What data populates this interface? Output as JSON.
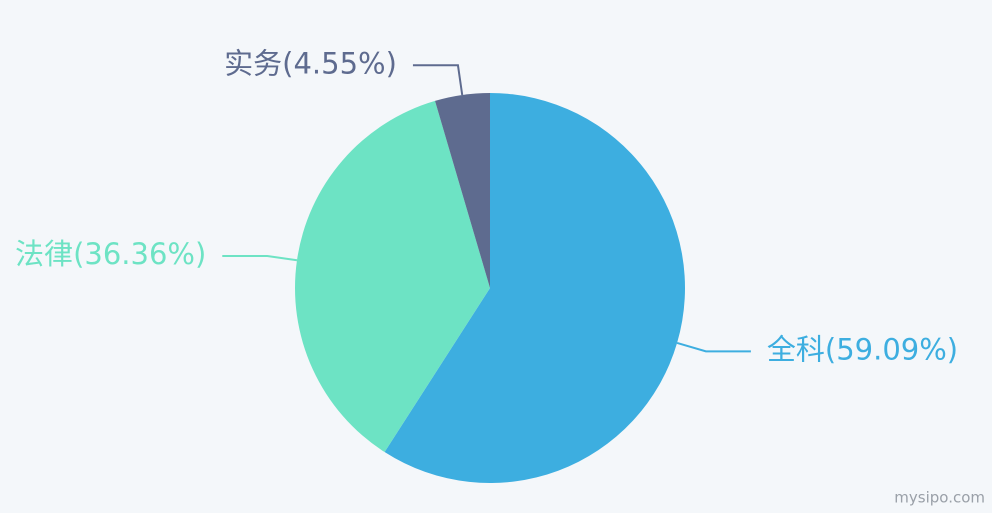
{
  "chart_data": {
    "type": "pie",
    "categories": [
      "全科",
      "法律",
      "实务"
    ],
    "values": [
      59.09,
      36.36,
      4.55
    ],
    "value_labels": [
      "(59.09%)",
      "(36.36%)",
      "(4.55%)"
    ],
    "colors": [
      "#3daee0",
      "#6de3c4",
      "#5e6b8f"
    ]
  },
  "watermark": "mysipo.com"
}
